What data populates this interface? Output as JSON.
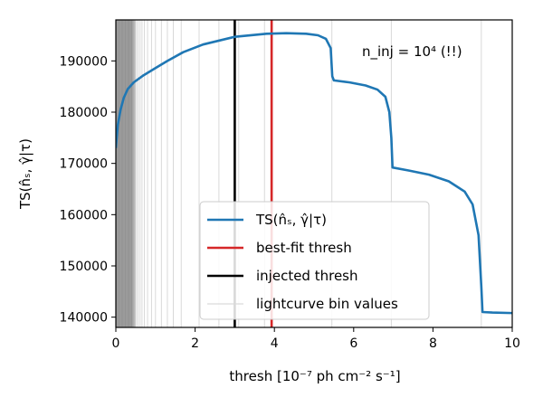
{
  "chart_data": {
    "type": "line",
    "xlabel": "thresh    [10⁻⁷ ph cm⁻² s⁻¹]",
    "ylabel": "TS(n̂ₛ, γ̂|τ)",
    "xlim": [
      0,
      10
    ],
    "ylim": [
      138000,
      198000
    ],
    "x_ticks": [
      0,
      2,
      4,
      6,
      8,
      10
    ],
    "y_ticks": [
      140000,
      150000,
      160000,
      170000,
      180000,
      190000
    ],
    "x_tick_labels": [
      "0",
      "2",
      "4",
      "6",
      "8",
      "10"
    ],
    "y_tick_labels": [
      "140000",
      "150000",
      "160000",
      "170000",
      "180000",
      "190000"
    ],
    "annotation": "n_inj = 10⁴ (!!)",
    "legend": {
      "placement": "lower center",
      "entries": [
        {
          "label": "TS(n̂ₛ, γ̂|τ)",
          "color": "#1f77b4",
          "style": "thick"
        },
        {
          "label": "best-fit thresh",
          "color": "#d62728",
          "style": "thick"
        },
        {
          "label": "injected thresh",
          "color": "#000000",
          "style": "thick"
        },
        {
          "label": "lightcurve bin values",
          "color": "#d9d9d9",
          "style": "thin"
        }
      ]
    },
    "series": [
      {
        "name": "TS(n̂ₛ, γ̂|τ)",
        "color": "#1f77b4",
        "x": [
          0,
          0.05,
          0.12,
          0.2,
          0.3,
          0.45,
          0.7,
          1.0,
          1.3,
          1.7,
          2.2,
          3.0,
          3.8,
          4.3,
          4.8,
          5.1,
          5.3,
          5.42,
          5.46,
          5.5,
          5.9,
          6.3,
          6.6,
          6.8,
          6.9,
          6.95,
          6.98,
          7.4,
          7.9,
          8.4,
          8.8,
          9.0,
          9.15,
          9.22,
          9.25,
          9.5,
          10.0
        ],
        "y": [
          173000,
          177500,
          180500,
          182800,
          184500,
          185800,
          187200,
          188600,
          190000,
          191700,
          193200,
          194700,
          195300,
          195400,
          195300,
          195000,
          194300,
          192500,
          187000,
          186200,
          185800,
          185200,
          184400,
          183000,
          180000,
          175000,
          169200,
          168600,
          167800,
          166500,
          164500,
          162000,
          156000,
          146000,
          141000,
          140900,
          140800
        ]
      }
    ],
    "vertical_lines": {
      "best_fit_thresh": 3.93,
      "injected_thresh": 3.0,
      "lightcurve_bin_values": [
        0.02,
        0.04,
        0.06,
        0.08,
        0.1,
        0.12,
        0.14,
        0.16,
        0.18,
        0.2,
        0.22,
        0.24,
        0.26,
        0.28,
        0.3,
        0.32,
        0.34,
        0.36,
        0.38,
        0.4,
        0.42,
        0.45,
        0.48,
        0.52,
        0.56,
        0.61,
        0.66,
        0.72,
        0.8,
        0.9,
        1.0,
        1.15,
        1.3,
        1.45,
        1.65,
        2.1,
        2.6,
        3.1,
        3.75,
        5.45,
        6.95,
        9.22
      ]
    },
    "grid": false
  }
}
